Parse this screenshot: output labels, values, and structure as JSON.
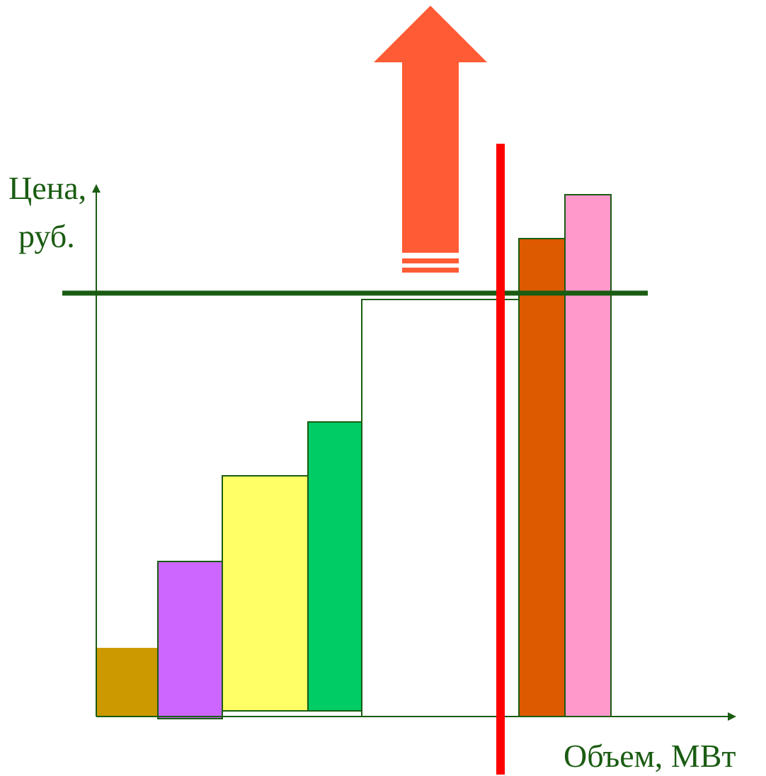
{
  "axes": {
    "y_label_line1": "Цена,",
    "y_label_line2": "руб.",
    "x_label": "Объем, МВт"
  },
  "colors": {
    "axis": "#1a5c12",
    "bar_outline": "#1a5c12",
    "price_line": "#1a5c12",
    "demand_line": "#ff0000",
    "arrow": "#ff5b35"
  },
  "bars": [
    {
      "name": "bar-1",
      "fill": "#cc9900"
    },
    {
      "name": "bar-2",
      "fill": "#cc66ff"
    },
    {
      "name": "bar-3",
      "fill": "#ffff66"
    },
    {
      "name": "bar-4",
      "fill": "#00cc66"
    },
    {
      "name": "bar-5",
      "fill": "#ffffff"
    },
    {
      "name": "bar-6",
      "fill": "#dd5a00"
    },
    {
      "name": "bar-7",
      "fill": "#ff99cc"
    }
  ]
}
